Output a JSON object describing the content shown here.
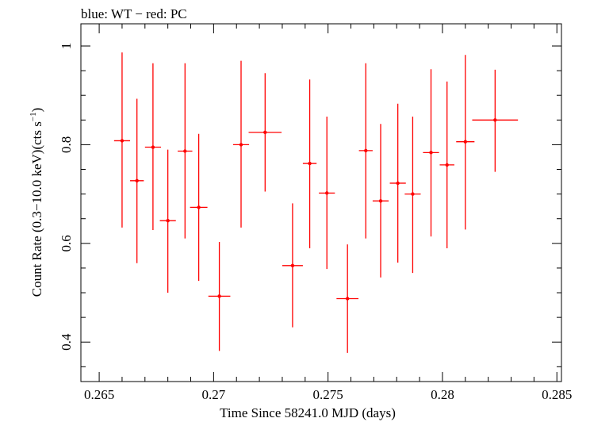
{
  "chart_data": {
    "type": "scatter",
    "title": "blue: WT − red: PC",
    "xlabel": "Time Since 58241.0 MJD (days)",
    "ylabel_main": "Count Rate (0.3−10.0 keV)(cts s",
    "ylabel_sup": "−1",
    "ylabel_close": ")",
    "xlim": [
      0.2642,
      0.2852
    ],
    "ylim": [
      0.32,
      1.045
    ],
    "xticks": [
      0.265,
      0.27,
      0.275,
      0.28,
      0.285
    ],
    "xtick_labels": [
      "0.265",
      "0.27",
      "0.275",
      "0.28",
      "0.285"
    ],
    "yticks": [
      0.4,
      0.6,
      0.8,
      1.0
    ],
    "ytick_labels": [
      "0.4",
      "0.6",
      "0.8",
      "1"
    ],
    "grid": false,
    "color": "#ff0000",
    "series": [
      {
        "points": [
          {
            "x": 0.266,
            "xerr": 0.00035,
            "y": 0.808,
            "ylo": 0.632,
            "yhi": 0.987
          },
          {
            "x": 0.26665,
            "xerr": 0.0003,
            "y": 0.727,
            "ylo": 0.56,
            "yhi": 0.893
          },
          {
            "x": 0.26735,
            "xerr": 0.00035,
            "y": 0.795,
            "ylo": 0.627,
            "yhi": 0.965
          },
          {
            "x": 0.268,
            "xerr": 0.00035,
            "y": 0.646,
            "ylo": 0.5,
            "yhi": 0.79
          },
          {
            "x": 0.26875,
            "xerr": 0.00032,
            "y": 0.787,
            "ylo": 0.61,
            "yhi": 0.965
          },
          {
            "x": 0.26935,
            "xerr": 0.00038,
            "y": 0.673,
            "ylo": 0.524,
            "yhi": 0.822
          },
          {
            "x": 0.27025,
            "xerr": 0.00048,
            "y": 0.493,
            "ylo": 0.382,
            "yhi": 0.603
          },
          {
            "x": 0.2712,
            "xerr": 0.00035,
            "y": 0.8,
            "ylo": 0.632,
            "yhi": 0.97
          },
          {
            "x": 0.27225,
            "xerr": 0.00072,
            "y": 0.825,
            "ylo": 0.705,
            "yhi": 0.945
          },
          {
            "x": 0.27345,
            "xerr": 0.00045,
            "y": 0.555,
            "ylo": 0.43,
            "yhi": 0.681
          },
          {
            "x": 0.2742,
            "xerr": 0.0003,
            "y": 0.762,
            "ylo": 0.59,
            "yhi": 0.932
          },
          {
            "x": 0.27495,
            "xerr": 0.00035,
            "y": 0.702,
            "ylo": 0.548,
            "yhi": 0.857
          },
          {
            "x": 0.27585,
            "xerr": 0.00048,
            "y": 0.488,
            "ylo": 0.378,
            "yhi": 0.598
          },
          {
            "x": 0.27665,
            "xerr": 0.0003,
            "y": 0.788,
            "ylo": 0.61,
            "yhi": 0.965
          },
          {
            "x": 0.2773,
            "xerr": 0.00035,
            "y": 0.686,
            "ylo": 0.531,
            "yhi": 0.842
          },
          {
            "x": 0.27805,
            "xerr": 0.00035,
            "y": 0.722,
            "ylo": 0.561,
            "yhi": 0.883
          },
          {
            "x": 0.2787,
            "xerr": 0.00035,
            "y": 0.7,
            "ylo": 0.54,
            "yhi": 0.857
          },
          {
            "x": 0.2795,
            "xerr": 0.00035,
            "y": 0.784,
            "ylo": 0.614,
            "yhi": 0.953
          },
          {
            "x": 0.2802,
            "xerr": 0.00032,
            "y": 0.759,
            "ylo": 0.59,
            "yhi": 0.928
          },
          {
            "x": 0.281,
            "xerr": 0.0004,
            "y": 0.806,
            "ylo": 0.628,
            "yhi": 0.982
          },
          {
            "x": 0.2823,
            "xerr": 0.001,
            "y": 0.85,
            "ylo": 0.745,
            "yhi": 0.952
          }
        ]
      }
    ]
  }
}
